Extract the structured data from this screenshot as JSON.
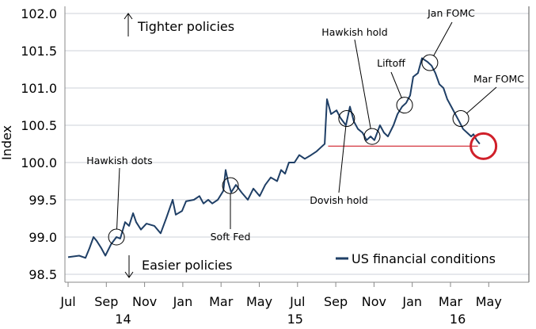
{
  "chart_data": {
    "type": "line",
    "title": "",
    "ylabel": "Index",
    "xlabel": "",
    "ylim": [
      98.4,
      102.1
    ],
    "xlim_months_since_jul_2014": [
      -0.2,
      23.9
    ],
    "yticks": [
      "98.5",
      "99.0",
      "99.5",
      "100.0",
      "100.5",
      "101.0",
      "101.5",
      "102.0"
    ],
    "ytick_values": [
      98.5,
      99.0,
      99.5,
      100.0,
      100.5,
      101.0,
      101.5,
      102.0
    ],
    "xticks": [
      "Jul",
      "Sep",
      "Nov",
      "Jan",
      "Mar",
      "May",
      "Jul",
      "Sep",
      "Nov",
      "Jan",
      "Mar",
      "May"
    ],
    "year_labels": [
      {
        "label": "14",
        "month": 3
      },
      {
        "label": "15",
        "month": 12
      },
      {
        "label": "16",
        "month": 20.5
      }
    ],
    "grid": true,
    "legend": {
      "label": "US financial conditions",
      "placement": "bottom-right"
    },
    "series": [
      {
        "name": "US financial conditions",
        "color": "#1f3f66",
        "x": [
          0,
          0.58,
          0.91,
          1.12,
          1.33,
          1.49,
          1.74,
          1.95,
          2.24,
          2.53,
          2.73,
          2.98,
          3.19,
          3.4,
          3.56,
          3.81,
          4.1,
          4.51,
          4.84,
          5.13,
          5.47,
          5.63,
          5.96,
          6.17,
          6.58,
          6.87,
          7.08,
          7.33,
          7.54,
          7.83,
          8.12,
          8.24,
          8.36,
          8.53,
          8.78,
          9.07,
          9.4,
          9.69,
          10.02,
          10.31,
          10.6,
          10.93,
          11.14,
          11.35,
          11.55,
          11.84,
          12.09,
          12.38,
          12.71,
          13.0,
          13.21,
          13.42,
          13.54,
          13.75,
          14.04,
          14.24,
          14.53,
          14.74,
          14.95,
          15.16,
          15.4,
          15.61,
          15.82,
          16.02,
          16.31,
          16.52,
          16.73,
          17.02,
          17.23,
          17.47,
          17.68,
          17.89,
          18.05,
          18.3,
          18.51,
          18.8,
          19.01,
          19.21,
          19.42,
          19.63,
          19.83,
          20.04,
          20.25,
          20.46,
          20.66,
          20.87,
          21.08,
          21.2,
          21.37,
          21.53
        ],
        "y": [
          98.73,
          98.75,
          98.72,
          98.85,
          99.0,
          98.95,
          98.85,
          98.75,
          98.9,
          99.0,
          98.98,
          99.2,
          99.15,
          99.32,
          99.2,
          99.1,
          99.18,
          99.15,
          99.05,
          99.25,
          99.5,
          99.3,
          99.35,
          99.48,
          99.5,
          99.55,
          99.45,
          99.5,
          99.45,
          99.5,
          99.62,
          99.9,
          99.75,
          99.6,
          99.7,
          99.6,
          99.5,
          99.65,
          99.55,
          99.7,
          99.8,
          99.75,
          99.9,
          99.85,
          100.0,
          100.0,
          100.1,
          100.05,
          100.1,
          100.15,
          100.2,
          100.25,
          100.85,
          100.65,
          100.7,
          100.6,
          100.5,
          100.75,
          100.55,
          100.45,
          100.4,
          100.3,
          100.35,
          100.3,
          100.5,
          100.4,
          100.35,
          100.5,
          100.65,
          100.75,
          100.8,
          100.9,
          101.15,
          101.2,
          101.4,
          101.35,
          101.3,
          101.2,
          101.05,
          101.0,
          100.85,
          100.75,
          100.65,
          100.55,
          100.45,
          100.4,
          100.35,
          100.38,
          100.3,
          100.25
        ]
      }
    ],
    "annotations": [
      {
        "label": "Hawkish dots",
        "month": 2.53,
        "value": 99.0
      },
      {
        "label": "Soft Fed",
        "month": 8.49,
        "value": 99.69
      },
      {
        "label": "Dovish hold",
        "month": 14.57,
        "value": 100.59
      },
      {
        "label": "Hawkish hold",
        "month": 15.9,
        "value": 100.35
      },
      {
        "label": "Liftoff",
        "month": 17.6,
        "value": 100.77
      },
      {
        "label": "Jan FOMC",
        "month": 18.92,
        "value": 101.34
      },
      {
        "label": "Mar FOMC",
        "month": 20.54,
        "value": 100.59
      }
    ],
    "reference_line": {
      "value": 100.22,
      "from_month": 13.6,
      "to_month": 21.6,
      "color": "#d0202a"
    },
    "highlight": {
      "month": 21.6,
      "value": 100.22,
      "color": "#d0202a"
    },
    "text_notes": {
      "up": "Tighter policies",
      "down": "Easier policies"
    }
  }
}
